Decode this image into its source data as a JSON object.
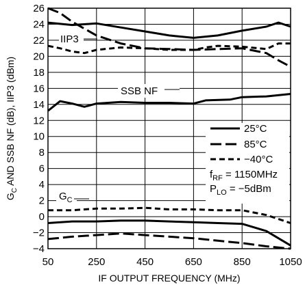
{
  "chart_data": {
    "type": "line",
    "xlabel": "IF OUTPUT FREQUENCY (MHz)",
    "ylabel": "G",
    "ylabel_sub": "C",
    "ylabel_rest": " AND SSB NF (dB), IIP3 (dBm)",
    "xlim": [
      50,
      1050
    ],
    "ylim": [
      -4,
      26
    ],
    "x_ticks": [
      "50",
      "250",
      "450",
      "650",
      "850",
      "1050"
    ],
    "y_ticks": [
      "-4",
      "-2",
      "0",
      "2",
      "4",
      "6",
      "8",
      "10",
      "12",
      "14",
      "16",
      "18",
      "20",
      "22",
      "24",
      "26"
    ],
    "grid": true,
    "legend": {
      "placement": "right",
      "entries": [
        {
          "label": "25°C",
          "style": "solid"
        },
        {
          "label": "85°C",
          "style": "longdash"
        },
        {
          "label": "−40°C",
          "style": "dash"
        }
      ]
    },
    "conditions": [
      {
        "main": "f",
        "sub": "RF",
        "rest": " = 1150MHz"
      },
      {
        "main": "P",
        "sub": "LO",
        "rest": " = −5dBm"
      }
    ],
    "annotations": {
      "iip3": "IIP3",
      "nf": "SSB NF",
      "gc_main": "G",
      "gc_sub": "C"
    },
    "series": [
      {
        "group": "IIP3",
        "temp": "25°C",
        "style": "solid",
        "x": [
          50,
          150,
          250,
          350,
          450,
          550,
          650,
          750,
          850,
          950,
          1000,
          1050
        ],
        "y": [
          24.2,
          23.9,
          24.1,
          23.6,
          23.1,
          22.6,
          22.3,
          22.6,
          23.2,
          23.7,
          24.2,
          23.7
        ]
      },
      {
        "group": "IIP3",
        "temp": "85°C",
        "style": "longdash",
        "x": [
          50,
          100,
          150,
          250,
          350,
          450,
          550,
          650,
          750,
          850,
          950,
          1000,
          1050
        ],
        "y": [
          26,
          25.4,
          24.3,
          22.6,
          21.6,
          21.0,
          20.9,
          20.8,
          20.9,
          21.0,
          20.4,
          19.5,
          18.7
        ]
      },
      {
        "group": "IIP3",
        "temp": "−40°C",
        "style": "dash",
        "x": [
          50,
          100,
          150,
          200,
          250,
          350,
          450,
          550,
          650,
          700,
          750,
          850,
          950,
          1000,
          1050
        ],
        "y": [
          21.3,
          21.0,
          20.6,
          20.4,
          20.8,
          21.1,
          21.0,
          20.8,
          20.8,
          21.1,
          21.3,
          21.2,
          20.9,
          21.6,
          21.6
        ]
      },
      {
        "group": "SSB NF",
        "temp": "25°C",
        "style": "solid",
        "x": [
          50,
          100,
          150,
          200,
          250,
          350,
          450,
          550,
          650,
          700,
          800,
          850,
          950,
          1050
        ],
        "y": [
          13.2,
          14.4,
          14.1,
          13.7,
          14.1,
          14.3,
          14.2,
          14.2,
          14.1,
          14.5,
          14.6,
          14.9,
          15.0,
          15.3
        ]
      },
      {
        "group": "GC",
        "temp": "25°C",
        "style": "solid",
        "x": [
          50,
          150,
          250,
          350,
          450,
          550,
          650,
          750,
          850,
          950,
          1050
        ],
        "y": [
          -0.8,
          -0.6,
          -0.6,
          -0.5,
          -0.5,
          -0.6,
          -0.7,
          -0.8,
          -0.9,
          -1.8,
          -3.6
        ]
      },
      {
        "group": "GC",
        "temp": "85°C",
        "style": "longdash",
        "x": [
          50,
          150,
          250,
          350,
          450,
          550,
          650,
          750,
          850,
          950,
          1050
        ],
        "y": [
          -2.8,
          -2.5,
          -2.3,
          -2.1,
          -2.3,
          -2.5,
          -2.7,
          -3.0,
          -3.3,
          -3.7,
          -4.0
        ]
      },
      {
        "group": "GC",
        "temp": "−40°C",
        "style": "dash",
        "x": [
          50,
          150,
          250,
          350,
          450,
          550,
          650,
          750,
          850,
          950,
          1050
        ],
        "y": [
          0.8,
          0.8,
          1.0,
          1.0,
          1.1,
          0.9,
          0.9,
          0.8,
          0.8,
          0.2,
          -0.8
        ]
      }
    ]
  }
}
